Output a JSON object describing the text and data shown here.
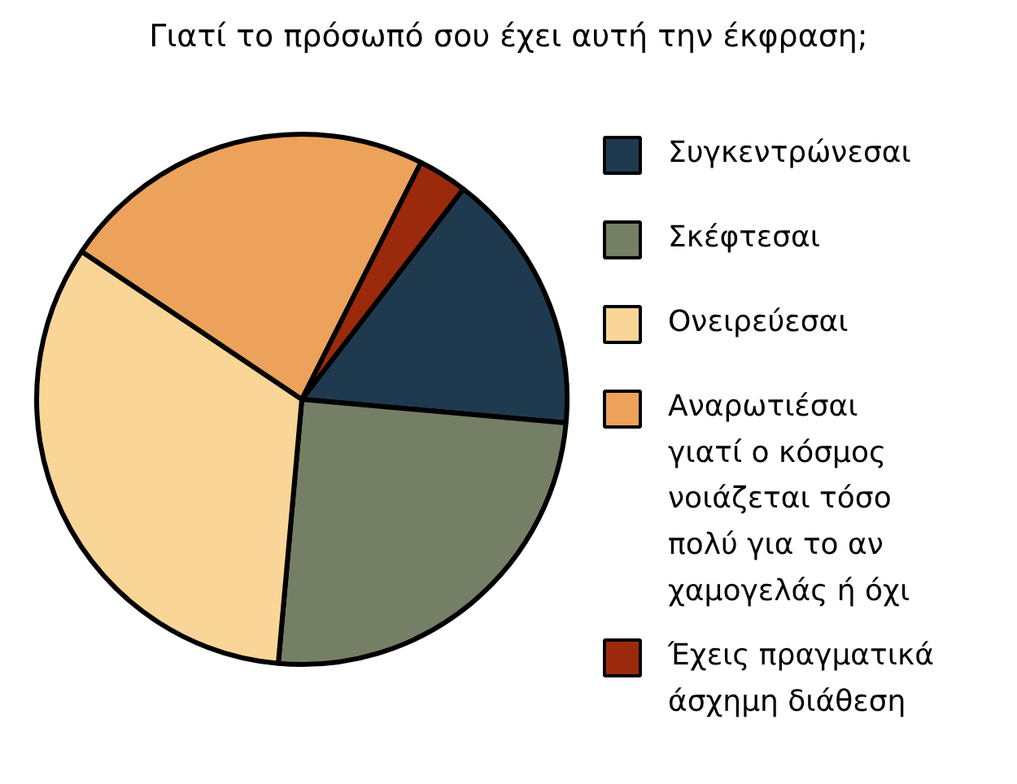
{
  "chart_data": {
    "type": "pie",
    "title": "Γιατί το πρόσωπό σου έχει αυτή την έκφραση;",
    "categories": [
      "Συγκεντρώνεσαι",
      "Σκέφτεσαι",
      "Ονειρεύεσαι",
      "Αναρωτιέσαι γιατί ο κόσμος νοιάζεται τόσο πολύ για το αν χαμογελάς ή όχι",
      "Έχεις πραγματικά άσχημη διάθεση"
    ],
    "values": [
      16,
      25,
      33,
      23,
      3
    ],
    "colors": [
      "#1f3a4f",
      "#747f66",
      "#f9d597",
      "#eca25a",
      "#9b2a0c"
    ],
    "legend": "right"
  }
}
